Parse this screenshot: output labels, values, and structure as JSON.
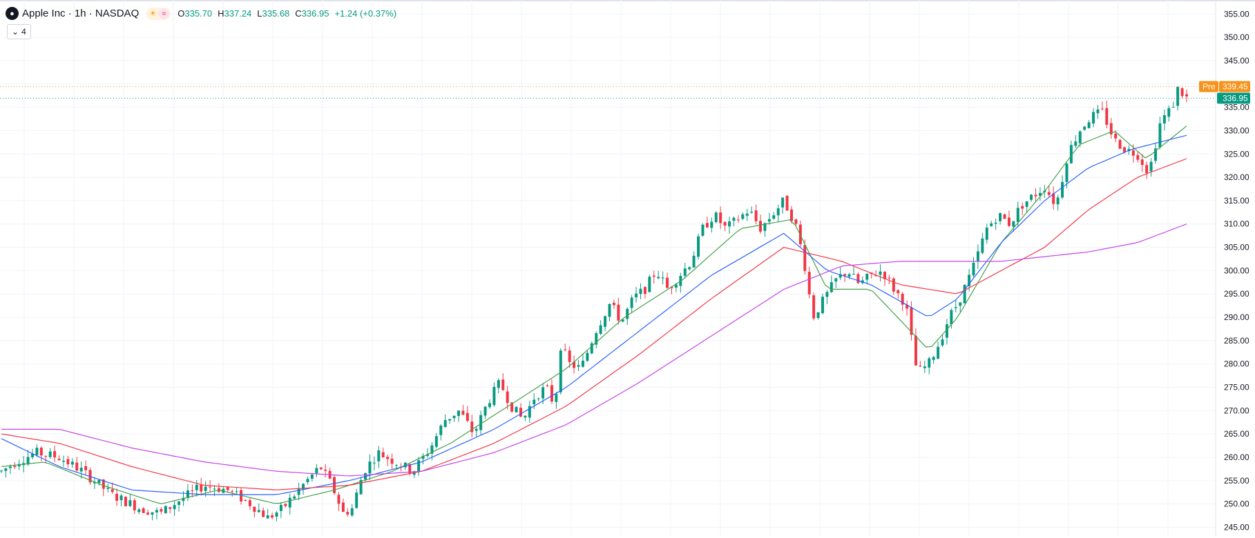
{
  "legend": {
    "title": "Apple Inc · 1h · NASDAQ",
    "o_label": "O",
    "o_value": "335.70",
    "h_label": "H",
    "h_value": "337.24",
    "l_label": "L",
    "l_value": "335.68",
    "c_label": "C",
    "c_value": "336.95",
    "change": "+1.24 (+0.37%)",
    "indicator_count": "4",
    "logo_icon": "apple-logo-icon",
    "sun_icon": "sun-icon",
    "wave_icon": "wave-icon"
  },
  "colors": {
    "up": "#089981",
    "down": "#f23645",
    "ma_green": "#43a047",
    "ma_blue": "#2962ff",
    "ma_red": "#f23645",
    "ma_purple": "#c542e8",
    "premarket": "#f7931a"
  },
  "chart_data": {
    "type": "candlestick",
    "ylim": [
      243,
      358
    ],
    "yticks": [
      245,
      250,
      255,
      260,
      265,
      270,
      275,
      280,
      285,
      290,
      295,
      300,
      305,
      310,
      315,
      320,
      325,
      330,
      335,
      340,
      345,
      350,
      355
    ],
    "ytick_labels": [
      "245.00",
      "250.00",
      "255.00",
      "260.00",
      "265.00",
      "270.00",
      "275.00",
      "280.00",
      "285.00",
      "290.00",
      "295.00",
      "300.00",
      "305.00",
      "310.00",
      "315.00",
      "320.00",
      "325.00",
      "330.00",
      "335.00",
      "340.00",
      "345.00",
      "350.00",
      "355.00"
    ],
    "bar_count": 268,
    "grid": true,
    "price_anchors": [
      [
        0,
        257
      ],
      [
        5,
        259
      ],
      [
        12,
        261
      ],
      [
        20,
        260
      ],
      [
        28,
        257
      ],
      [
        38,
        252
      ],
      [
        48,
        249
      ],
      [
        55,
        248
      ],
      [
        62,
        251
      ],
      [
        70,
        254
      ],
      [
        78,
        253
      ],
      [
        86,
        250
      ],
      [
        92,
        247
      ],
      [
        97,
        249
      ],
      [
        104,
        254
      ],
      [
        110,
        258
      ],
      [
        114,
        254
      ],
      [
        118,
        248
      ],
      [
        121,
        249
      ],
      [
        125,
        257
      ],
      [
        130,
        261
      ],
      [
        136,
        259
      ],
      [
        142,
        257
      ],
      [
        148,
        262
      ],
      [
        153,
        268
      ],
      [
        158,
        270
      ],
      [
        163,
        265
      ],
      [
        168,
        272
      ],
      [
        172,
        276
      ],
      [
        176,
        271
      ],
      [
        180,
        268
      ],
      [
        184,
        273
      ],
      [
        188,
        275
      ],
      [
        191,
        271
      ],
      [
        193,
        284
      ],
      [
        196,
        280
      ],
      [
        200,
        279
      ],
      [
        205,
        287
      ],
      [
        210,
        293
      ],
      [
        214,
        289
      ],
      [
        218,
        294
      ],
      [
        222,
        296
      ],
      [
        226,
        300
      ],
      [
        230,
        296
      ],
      [
        234,
        299
      ],
      [
        238,
        302
      ],
      [
        242,
        309
      ],
      [
        246,
        312
      ],
      [
        250,
        309
      ],
      [
        254,
        311
      ],
      [
        258,
        313
      ],
      [
        262,
        309
      ],
      [
        266,
        312
      ],
      [
        270,
        315
      ],
      [
        274,
        310
      ],
      [
        277,
        302
      ],
      [
        280,
        290
      ],
      [
        284,
        294
      ],
      [
        288,
        298
      ],
      [
        292,
        300
      ],
      [
        296,
        297
      ],
      [
        300,
        299
      ],
      [
        304,
        300
      ],
      [
        308,
        296
      ],
      [
        312,
        293
      ],
      [
        316,
        278
      ],
      [
        320,
        280
      ],
      [
        324,
        285
      ],
      [
        327,
        290
      ],
      [
        330,
        293
      ]
    ],
    "ma_anchors": {
      "green": [
        [
          0,
          258
        ],
        [
          15,
          259
        ],
        [
          35,
          254
        ],
        [
          55,
          250
        ],
        [
          75,
          253
        ],
        [
          95,
          250
        ],
        [
          115,
          253
        ],
        [
          135,
          257
        ],
        [
          155,
          263
        ],
        [
          175,
          271
        ],
        [
          195,
          279
        ],
        [
          215,
          290
        ],
        [
          235,
          298
        ],
        [
          255,
          309
        ],
        [
          273,
          311
        ],
        [
          285,
          296
        ],
        [
          300,
          296
        ],
        [
          320,
          283
        ],
        [
          330,
          290
        ]
      ],
      "blue": [
        [
          0,
          264
        ],
        [
          20,
          258
        ],
        [
          45,
          253
        ],
        [
          70,
          252
        ],
        [
          95,
          252
        ],
        [
          120,
          255
        ],
        [
          145,
          259
        ],
        [
          170,
          266
        ],
        [
          195,
          275
        ],
        [
          220,
          287
        ],
        [
          245,
          299
        ],
        [
          270,
          308
        ],
        [
          285,
          300
        ],
        [
          300,
          297
        ],
        [
          320,
          290
        ],
        [
          330,
          294
        ]
      ],
      "red": [
        [
          0,
          265
        ],
        [
          20,
          263
        ],
        [
          45,
          258
        ],
        [
          70,
          254
        ],
        [
          95,
          253
        ],
        [
          120,
          254
        ],
        [
          145,
          257
        ],
        [
          170,
          263
        ],
        [
          195,
          271
        ],
        [
          220,
          282
        ],
        [
          245,
          294
        ],
        [
          270,
          305
        ],
        [
          290,
          302
        ],
        [
          310,
          297
        ],
        [
          330,
          295
        ]
      ],
      "purple": [
        [
          0,
          266
        ],
        [
          20,
          266
        ],
        [
          45,
          262
        ],
        [
          70,
          259
        ],
        [
          95,
          257
        ],
        [
          120,
          256
        ],
        [
          145,
          257
        ],
        [
          170,
          261
        ],
        [
          195,
          267
        ],
        [
          220,
          276
        ],
        [
          245,
          286
        ],
        [
          270,
          296
        ],
        [
          290,
          301
        ],
        [
          310,
          302
        ],
        [
          330,
          302
        ]
      ]
    },
    "price_anchors_tail": [
      [
        330,
        293
      ],
      [
        335,
        300
      ],
      [
        340,
        309
      ],
      [
        344,
        312
      ],
      [
        348,
        310
      ],
      [
        352,
        314
      ],
      [
        356,
        316
      ],
      [
        360,
        318
      ],
      [
        364,
        314
      ],
      [
        368,
        325
      ],
      [
        372,
        330
      ],
      [
        376,
        333
      ],
      [
        380,
        334
      ],
      [
        384,
        328
      ],
      [
        388,
        326
      ],
      [
        392,
        325
      ],
      [
        396,
        321
      ],
      [
        400,
        332
      ],
      [
        404,
        335
      ],
      [
        406,
        339
      ],
      [
        409,
        337
      ]
    ],
    "ma_anchors_tail": {
      "green": [
        [
          330,
          290
        ],
        [
          345,
          306
        ],
        [
          360,
          317
        ],
        [
          372,
          327
        ],
        [
          384,
          330
        ],
        [
          395,
          324
        ],
        [
          409,
          331
        ]
      ],
      "blue": [
        [
          330,
          294
        ],
        [
          345,
          306
        ],
        [
          360,
          315
        ],
        [
          375,
          322
        ],
        [
          390,
          326
        ],
        [
          409,
          329
        ]
      ],
      "red": [
        [
          330,
          295
        ],
        [
          345,
          300
        ],
        [
          360,
          305
        ],
        [
          375,
          313
        ],
        [
          392,
          320
        ],
        [
          409,
          324
        ]
      ],
      "purple": [
        [
          330,
          302
        ],
        [
          345,
          302
        ],
        [
          360,
          303
        ],
        [
          375,
          304
        ],
        [
          392,
          306
        ],
        [
          409,
          310
        ]
      ]
    },
    "last_price": 336.95,
    "last_price_label": "336.95",
    "premarket_price": 339.45,
    "premarket_price_label": "339.45",
    "premarket_tag": "Pre"
  }
}
